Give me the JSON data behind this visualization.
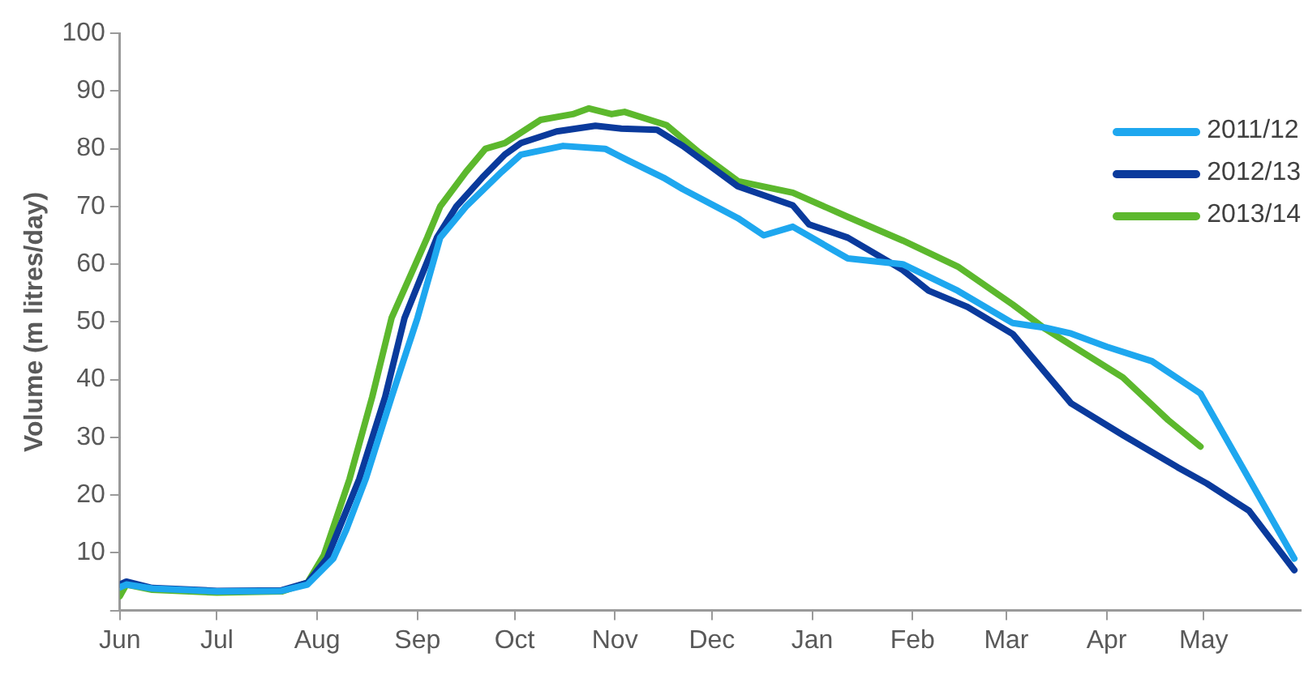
{
  "chart_data": {
    "type": "line",
    "ylabel": "Volume (m litres/day)",
    "xlim": [
      "2011-06-01",
      "2012-05-31"
    ],
    "xticks": [
      {
        "value": "2011-06-01",
        "label": "Jun"
      },
      {
        "value": "2011-07-01",
        "label": "Jul"
      },
      {
        "value": "2011-08-01",
        "label": "Aug"
      },
      {
        "value": "2011-09-01",
        "label": "Sep"
      },
      {
        "value": "2011-10-01",
        "label": "Oct"
      },
      {
        "value": "2011-11-01",
        "label": "Nov"
      },
      {
        "value": "2011-12-01",
        "label": "Dec"
      },
      {
        "value": "2012-01-01",
        "label": "Jan"
      },
      {
        "value": "2012-02-01",
        "label": "Feb"
      },
      {
        "value": "2012-03-01",
        "label": "Mar"
      },
      {
        "value": "2012-04-01",
        "label": "Apr"
      },
      {
        "value": "2012-05-01",
        "label": "May"
      }
    ],
    "ylim": [
      0,
      100
    ],
    "yticks": [
      {
        "value": 0,
        "label": null
      },
      10,
      20,
      30,
      40,
      50,
      60,
      70,
      80,
      90,
      100
    ],
    "grid": false,
    "legend": "top right",
    "marker": "none",
    "line_style": "solid",
    "series": [
      {
        "name": "2011/12",
        "color": "#1ea7ef",
        "x": [
          "2011-06-01",
          "2011-06-03",
          "2011-06-11",
          "2011-07-01",
          "2011-07-21",
          "2011-07-29",
          "2011-08-06",
          "2011-08-10",
          "2011-08-16",
          "2011-08-24",
          "2011-09-01",
          "2011-09-08",
          "2011-09-16",
          "2011-09-27",
          "2011-10-03",
          "2011-10-16",
          "2011-10-29",
          "2011-11-05",
          "2011-11-16",
          "2011-11-22",
          "2011-12-09",
          "2011-12-17",
          "2011-12-26",
          "2012-01-12",
          "2012-01-29",
          "2012-02-15",
          "2012-03-03",
          "2012-03-13",
          "2012-03-21",
          "2012-04-01",
          "2012-04-15",
          "2012-04-30",
          "2012-05-13",
          "2012-05-29"
        ],
        "values": [
          4,
          4.5,
          3.8,
          3.3,
          3.4,
          4.5,
          9,
          14,
          22.8,
          37,
          50.7,
          64.6,
          70,
          76,
          79,
          80.5,
          80,
          78,
          75,
          73,
          68,
          65,
          66.5,
          61,
          60,
          55.4,
          49.8,
          49,
          48,
          45.7,
          43.2,
          37.6,
          24.8,
          9
        ]
      },
      {
        "name": "2012/13",
        "color": "#0a3a9c",
        "x": [
          "2011-06-01",
          "2011-06-03",
          "2011-06-11",
          "2011-07-01",
          "2011-07-21",
          "2011-07-29",
          "2011-08-04",
          "2011-08-14",
          "2011-08-22",
          "2011-08-28",
          "2011-09-07",
          "2011-09-13",
          "2011-09-21",
          "2011-09-28",
          "2011-10-03",
          "2011-10-14",
          "2011-10-26",
          "2011-11-03",
          "2011-11-14",
          "2011-11-22",
          "2011-12-09",
          "2011-12-26",
          "2011-12-31",
          "2012-01-12",
          "2012-01-29",
          "2012-02-06",
          "2012-02-18",
          "2012-03-03",
          "2012-03-21",
          "2012-04-06",
          "2012-04-23",
          "2012-05-02",
          "2012-05-15",
          "2012-05-29"
        ],
        "values": [
          4.5,
          5,
          3.9,
          3.4,
          3.5,
          4.8,
          9,
          22.8,
          37,
          50.7,
          64.6,
          70,
          75,
          79,
          81,
          83,
          84,
          83.5,
          83.3,
          80.5,
          73.5,
          70.2,
          66.9,
          64.6,
          59,
          55.4,
          52.6,
          47.9,
          35.9,
          30.4,
          24.8,
          22,
          17.3,
          7
        ]
      },
      {
        "name": "2013/14",
        "color": "#5cb82d",
        "x": [
          "2011-06-01",
          "2011-06-03",
          "2011-06-11",
          "2011-07-01",
          "2011-07-21",
          "2011-07-29",
          "2011-08-03",
          "2011-08-11",
          "2011-08-18",
          "2011-08-24",
          "2011-09-04",
          "2011-09-08",
          "2011-09-16",
          "2011-09-22",
          "2011-09-28",
          "2011-10-09",
          "2011-10-19",
          "2011-10-24",
          "2011-10-31",
          "2011-11-04",
          "2011-11-17",
          "2011-11-27",
          "2011-12-09",
          "2011-12-26",
          "2012-01-12",
          "2012-01-29",
          "2012-02-15",
          "2012-03-03",
          "2012-03-13",
          "2012-03-29",
          "2012-04-06",
          "2012-04-20",
          "2012-04-30"
        ],
        "values": [
          2.5,
          4.5,
          3.6,
          3.1,
          3.3,
          4.8,
          9.5,
          22.8,
          37,
          50.7,
          64.6,
          70,
          76,
          80,
          81,
          85,
          86,
          87,
          86,
          86.4,
          84.1,
          79.4,
          74.4,
          72.4,
          68.2,
          64.1,
          59.6,
          53,
          48.8,
          43.2,
          40.4,
          33,
          28.4
        ]
      }
    ]
  }
}
